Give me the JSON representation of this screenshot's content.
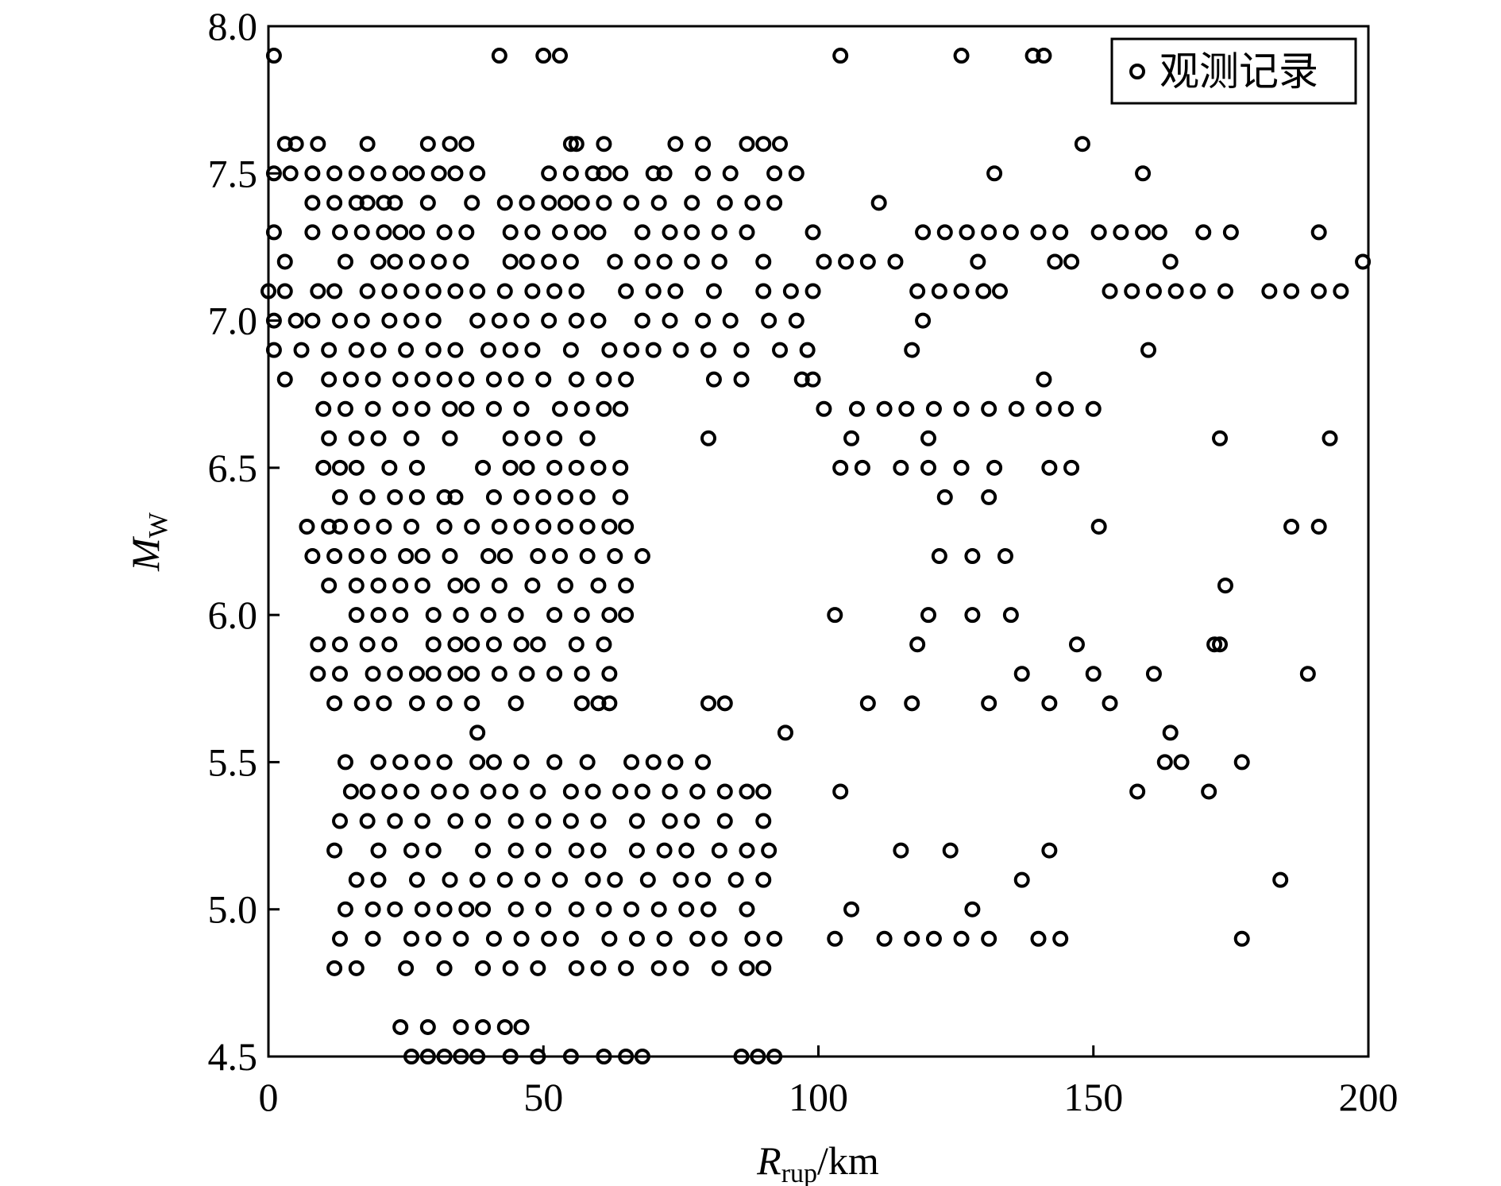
{
  "chart_data": {
    "type": "scatter",
    "x_label": {
      "main": "R",
      "sub": "rup",
      "unit": "/km"
    },
    "y_label": {
      "main": "M",
      "sub": "W"
    },
    "xlim": [
      0,
      200
    ],
    "xticks": [
      0,
      50,
      100,
      150,
      200
    ],
    "ylim": [
      4.5,
      8
    ],
    "yticks": [
      4.5,
      {
        "value": 5,
        "label": "5.0"
      },
      5.5,
      {
        "value": 6,
        "label": "6.0"
      },
      6.5,
      {
        "value": 7,
        "label": "7.0"
      },
      7.5,
      {
        "value": 8,
        "label": "8.0"
      }
    ],
    "legend": "upper right",
    "series": [
      {
        "name": "观测记录",
        "color": "#000000",
        "x": [
          1,
          42,
          50,
          53,
          104,
          126,
          139,
          141,
          3,
          5,
          9,
          18,
          29,
          33,
          36,
          55,
          56,
          61,
          74,
          79,
          87,
          90,
          93,
          148,
          1,
          4,
          8,
          12,
          16,
          20,
          24,
          27,
          31,
          34,
          38,
          51,
          55,
          59,
          61,
          64,
          70,
          72,
          79,
          84,
          92,
          96,
          132,
          159,
          8,
          12,
          16,
          18,
          21,
          23,
          29,
          37,
          43,
          47,
          51,
          54,
          57,
          61,
          66,
          71,
          77,
          83,
          88,
          92,
          111,
          1,
          8,
          13,
          17,
          21,
          24,
          27,
          32,
          36,
          44,
          48,
          53,
          57,
          60,
          68,
          73,
          77,
          82,
          87,
          99,
          119,
          123,
          127,
          131,
          135,
          140,
          144,
          151,
          155,
          159,
          162,
          170,
          175,
          191,
          3,
          14,
          20,
          23,
          27,
          31,
          35,
          44,
          47,
          51,
          55,
          63,
          68,
          72,
          77,
          82,
          90,
          101,
          105,
          109,
          114,
          129,
          143,
          146,
          164,
          199,
          0,
          3,
          9,
          12,
          18,
          22,
          26,
          30,
          34,
          38,
          43,
          48,
          52,
          56,
          65,
          70,
          74,
          81,
          90,
          95,
          99,
          118,
          122,
          126,
          130,
          133,
          153,
          157,
          161,
          165,
          169,
          174,
          182,
          186,
          191,
          195,
          1,
          5,
          8,
          13,
          17,
          22,
          26,
          30,
          38,
          42,
          46,
          51,
          56,
          60,
          68,
          73,
          79,
          84,
          91,
          96,
          119,
          1,
          6,
          11,
          16,
          20,
          25,
          30,
          34,
          40,
          44,
          48,
          55,
          62,
          66,
          70,
          75,
          80,
          86,
          93,
          98,
          117,
          160,
          3,
          11,
          15,
          19,
          24,
          28,
          32,
          36,
          41,
          45,
          50,
          56,
          61,
          65,
          81,
          86,
          97,
          99,
          141,
          10,
          14,
          19,
          24,
          28,
          33,
          36,
          41,
          46,
          53,
          57,
          61,
          64,
          101,
          107,
          112,
          116,
          121,
          126,
          131,
          136,
          141,
          145,
          150,
          11,
          16,
          20,
          26,
          33,
          44,
          48,
          52,
          58,
          80,
          106,
          120,
          173,
          193,
          10,
          13,
          16,
          22,
          27,
          39,
          44,
          47,
          52,
          56,
          60,
          64,
          104,
          108,
          115,
          120,
          126,
          132,
          142,
          146,
          13,
          18,
          23,
          27,
          32,
          34,
          41,
          46,
          50,
          54,
          58,
          64,
          123,
          131,
          7,
          11,
          13,
          17,
          21,
          26,
          32,
          37,
          42,
          46,
          50,
          54,
          58,
          62,
          65,
          151,
          186,
          191,
          8,
          12,
          16,
          20,
          25,
          28,
          33,
          40,
          43,
          49,
          53,
          58,
          63,
          68,
          122,
          128,
          134,
          11,
          16,
          20,
          24,
          28,
          34,
          37,
          42,
          48,
          54,
          60,
          65,
          174,
          16,
          20,
          24,
          30,
          35,
          40,
          45,
          52,
          57,
          62,
          65,
          103,
          120,
          128,
          135,
          9,
          13,
          18,
          22,
          30,
          34,
          37,
          41,
          46,
          49,
          56,
          61,
          118,
          147,
          172,
          173,
          9,
          13,
          19,
          23,
          27,
          30,
          34,
          37,
          42,
          47,
          52,
          57,
          62,
          137,
          150,
          161,
          189,
          12,
          17,
          21,
          27,
          32,
          37,
          45,
          57,
          60,
          62,
          80,
          83,
          109,
          117,
          131,
          142,
          153,
          38,
          94,
          164,
          14,
          20,
          24,
          28,
          32,
          38,
          41,
          46,
          52,
          58,
          66,
          70,
          74,
          79,
          163,
          166,
          177,
          15,
          18,
          22,
          26,
          31,
          35,
          40,
          44,
          49,
          55,
          59,
          64,
          68,
          73,
          78,
          83,
          87,
          90,
          104,
          158,
          171,
          13,
          18,
          23,
          28,
          34,
          39,
          45,
          50,
          55,
          60,
          67,
          73,
          77,
          83,
          90,
          12,
          20,
          26,
          30,
          39,
          45,
          50,
          56,
          60,
          67,
          72,
          76,
          82,
          87,
          91,
          115,
          124,
          142,
          16,
          20,
          27,
          33,
          38,
          43,
          48,
          53,
          59,
          63,
          69,
          75,
          79,
          85,
          90,
          137,
          184,
          14,
          19,
          23,
          28,
          32,
          36,
          39,
          45,
          50,
          56,
          61,
          66,
          71,
          76,
          80,
          87,
          106,
          128,
          13,
          19,
          26,
          30,
          35,
          41,
          46,
          51,
          55,
          62,
          67,
          72,
          78,
          82,
          88,
          92,
          103,
          112,
          117,
          121,
          126,
          131,
          140,
          144,
          177,
          12,
          16,
          25,
          32,
          39,
          44,
          49,
          56,
          60,
          65,
          71,
          75,
          82,
          87,
          90,
          24,
          29,
          35,
          39,
          43,
          46,
          26,
          29,
          32,
          35,
          38,
          44,
          49,
          55,
          61,
          65,
          68,
          86,
          89,
          92
        ],
        "y": [
          7.9,
          7.9,
          7.9,
          7.9,
          7.9,
          7.9,
          7.9,
          7.9,
          7.6,
          7.6,
          7.6,
          7.6,
          7.6,
          7.6,
          7.6,
          7.6,
          7.6,
          7.6,
          7.6,
          7.6,
          7.6,
          7.6,
          7.6,
          7.6,
          7.5,
          7.5,
          7.5,
          7.5,
          7.5,
          7.5,
          7.5,
          7.5,
          7.5,
          7.5,
          7.5,
          7.5,
          7.5,
          7.5,
          7.5,
          7.5,
          7.5,
          7.5,
          7.5,
          7.5,
          7.5,
          7.5,
          7.5,
          7.5,
          7.4,
          7.4,
          7.4,
          7.4,
          7.4,
          7.4,
          7.4,
          7.4,
          7.4,
          7.4,
          7.4,
          7.4,
          7.4,
          7.4,
          7.4,
          7.4,
          7.4,
          7.4,
          7.4,
          7.4,
          7.4,
          7.3,
          7.3,
          7.3,
          7.3,
          7.3,
          7.3,
          7.3,
          7.3,
          7.3,
          7.3,
          7.3,
          7.3,
          7.3,
          7.3,
          7.3,
          7.3,
          7.3,
          7.3,
          7.3,
          7.3,
          7.3,
          7.3,
          7.3,
          7.3,
          7.3,
          7.3,
          7.3,
          7.3,
          7.3,
          7.3,
          7.3,
          7.3,
          7.3,
          7.3,
          7.2,
          7.2,
          7.2,
          7.2,
          7.2,
          7.2,
          7.2,
          7.2,
          7.2,
          7.2,
          7.2,
          7.2,
          7.2,
          7.2,
          7.2,
          7.2,
          7.2,
          7.2,
          7.2,
          7.2,
          7.2,
          7.2,
          7.2,
          7.2,
          7.2,
          7.2,
          7.1,
          7.1,
          7.1,
          7.1,
          7.1,
          7.1,
          7.1,
          7.1,
          7.1,
          7.1,
          7.1,
          7.1,
          7.1,
          7.1,
          7.1,
          7.1,
          7.1,
          7.1,
          7.1,
          7.1,
          7.1,
          7.1,
          7.1,
          7.1,
          7.1,
          7.1,
          7.1,
          7.1,
          7.1,
          7.1,
          7.1,
          7.1,
          7.1,
          7.1,
          7.1,
          7.1,
          7,
          7,
          7,
          7,
          7,
          7,
          7,
          7,
          7,
          7,
          7,
          7,
          7,
          7,
          7,
          7,
          7,
          7,
          7,
          7,
          7,
          6.9,
          6.9,
          6.9,
          6.9,
          6.9,
          6.9,
          6.9,
          6.9,
          6.9,
          6.9,
          6.9,
          6.9,
          6.9,
          6.9,
          6.9,
          6.9,
          6.9,
          6.9,
          6.9,
          6.9,
          6.9,
          6.9,
          6.8,
          6.8,
          6.8,
          6.8,
          6.8,
          6.8,
          6.8,
          6.8,
          6.8,
          6.8,
          6.8,
          6.8,
          6.8,
          6.8,
          6.8,
          6.8,
          6.8,
          6.8,
          6.8,
          6.7,
          6.7,
          6.7,
          6.7,
          6.7,
          6.7,
          6.7,
          6.7,
          6.7,
          6.7,
          6.7,
          6.7,
          6.7,
          6.7,
          6.7,
          6.7,
          6.7,
          6.7,
          6.7,
          6.7,
          6.7,
          6.7,
          6.7,
          6.7,
          6.6,
          6.6,
          6.6,
          6.6,
          6.6,
          6.6,
          6.6,
          6.6,
          6.6,
          6.6,
          6.6,
          6.6,
          6.6,
          6.6,
          6.5,
          6.5,
          6.5,
          6.5,
          6.5,
          6.5,
          6.5,
          6.5,
          6.5,
          6.5,
          6.5,
          6.5,
          6.5,
          6.5,
          6.5,
          6.5,
          6.5,
          6.5,
          6.5,
          6.5,
          6.4,
          6.4,
          6.4,
          6.4,
          6.4,
          6.4,
          6.4,
          6.4,
          6.4,
          6.4,
          6.4,
          6.4,
          6.4,
          6.4,
          6.3,
          6.3,
          6.3,
          6.3,
          6.3,
          6.3,
          6.3,
          6.3,
          6.3,
          6.3,
          6.3,
          6.3,
          6.3,
          6.3,
          6.3,
          6.3,
          6.3,
          6.3,
          6.2,
          6.2,
          6.2,
          6.2,
          6.2,
          6.2,
          6.2,
          6.2,
          6.2,
          6.2,
          6.2,
          6.2,
          6.2,
          6.2,
          6.2,
          6.2,
          6.2,
          6.1,
          6.1,
          6.1,
          6.1,
          6.1,
          6.1,
          6.1,
          6.1,
          6.1,
          6.1,
          6.1,
          6.1,
          6.1,
          6,
          6,
          6,
          6,
          6,
          6,
          6,
          6,
          6,
          6,
          6,
          6,
          6,
          6,
          6,
          5.9,
          5.9,
          5.9,
          5.9,
          5.9,
          5.9,
          5.9,
          5.9,
          5.9,
          5.9,
          5.9,
          5.9,
          5.9,
          5.9,
          5.9,
          5.9,
          5.8,
          5.8,
          5.8,
          5.8,
          5.8,
          5.8,
          5.8,
          5.8,
          5.8,
          5.8,
          5.8,
          5.8,
          5.8,
          5.8,
          5.8,
          5.8,
          5.8,
          5.7,
          5.7,
          5.7,
          5.7,
          5.7,
          5.7,
          5.7,
          5.7,
          5.7,
          5.7,
          5.7,
          5.7,
          5.7,
          5.7,
          5.7,
          5.7,
          5.7,
          5.6,
          5.6,
          5.6,
          5.5,
          5.5,
          5.5,
          5.5,
          5.5,
          5.5,
          5.5,
          5.5,
          5.5,
          5.5,
          5.5,
          5.5,
          5.5,
          5.5,
          5.5,
          5.5,
          5.5,
          5.4,
          5.4,
          5.4,
          5.4,
          5.4,
          5.4,
          5.4,
          5.4,
          5.4,
          5.4,
          5.4,
          5.4,
          5.4,
          5.4,
          5.4,
          5.4,
          5.4,
          5.4,
          5.4,
          5.4,
          5.4,
          5.3,
          5.3,
          5.3,
          5.3,
          5.3,
          5.3,
          5.3,
          5.3,
          5.3,
          5.3,
          5.3,
          5.3,
          5.3,
          5.3,
          5.3,
          5.2,
          5.2,
          5.2,
          5.2,
          5.2,
          5.2,
          5.2,
          5.2,
          5.2,
          5.2,
          5.2,
          5.2,
          5.2,
          5.2,
          5.2,
          5.2,
          5.2,
          5.2,
          5.1,
          5.1,
          5.1,
          5.1,
          5.1,
          5.1,
          5.1,
          5.1,
          5.1,
          5.1,
          5.1,
          5.1,
          5.1,
          5.1,
          5.1,
          5.1,
          5.1,
          5,
          5,
          5,
          5,
          5,
          5,
          5,
          5,
          5,
          5,
          5,
          5,
          5,
          5,
          5,
          5,
          5,
          5,
          4.9,
          4.9,
          4.9,
          4.9,
          4.9,
          4.9,
          4.9,
          4.9,
          4.9,
          4.9,
          4.9,
          4.9,
          4.9,
          4.9,
          4.9,
          4.9,
          4.9,
          4.9,
          4.9,
          4.9,
          4.9,
          4.9,
          4.9,
          4.9,
          4.9,
          4.8,
          4.8,
          4.8,
          4.8,
          4.8,
          4.8,
          4.8,
          4.8,
          4.8,
          4.8,
          4.8,
          4.8,
          4.8,
          4.8,
          4.8,
          4.6,
          4.6,
          4.6,
          4.6,
          4.6,
          4.6,
          4.5,
          4.5,
          4.5,
          4.5,
          4.5,
          4.5,
          4.5,
          4.5,
          4.5,
          4.5,
          4.5,
          4.5,
          4.5,
          4.5
        ]
      }
    ]
  }
}
